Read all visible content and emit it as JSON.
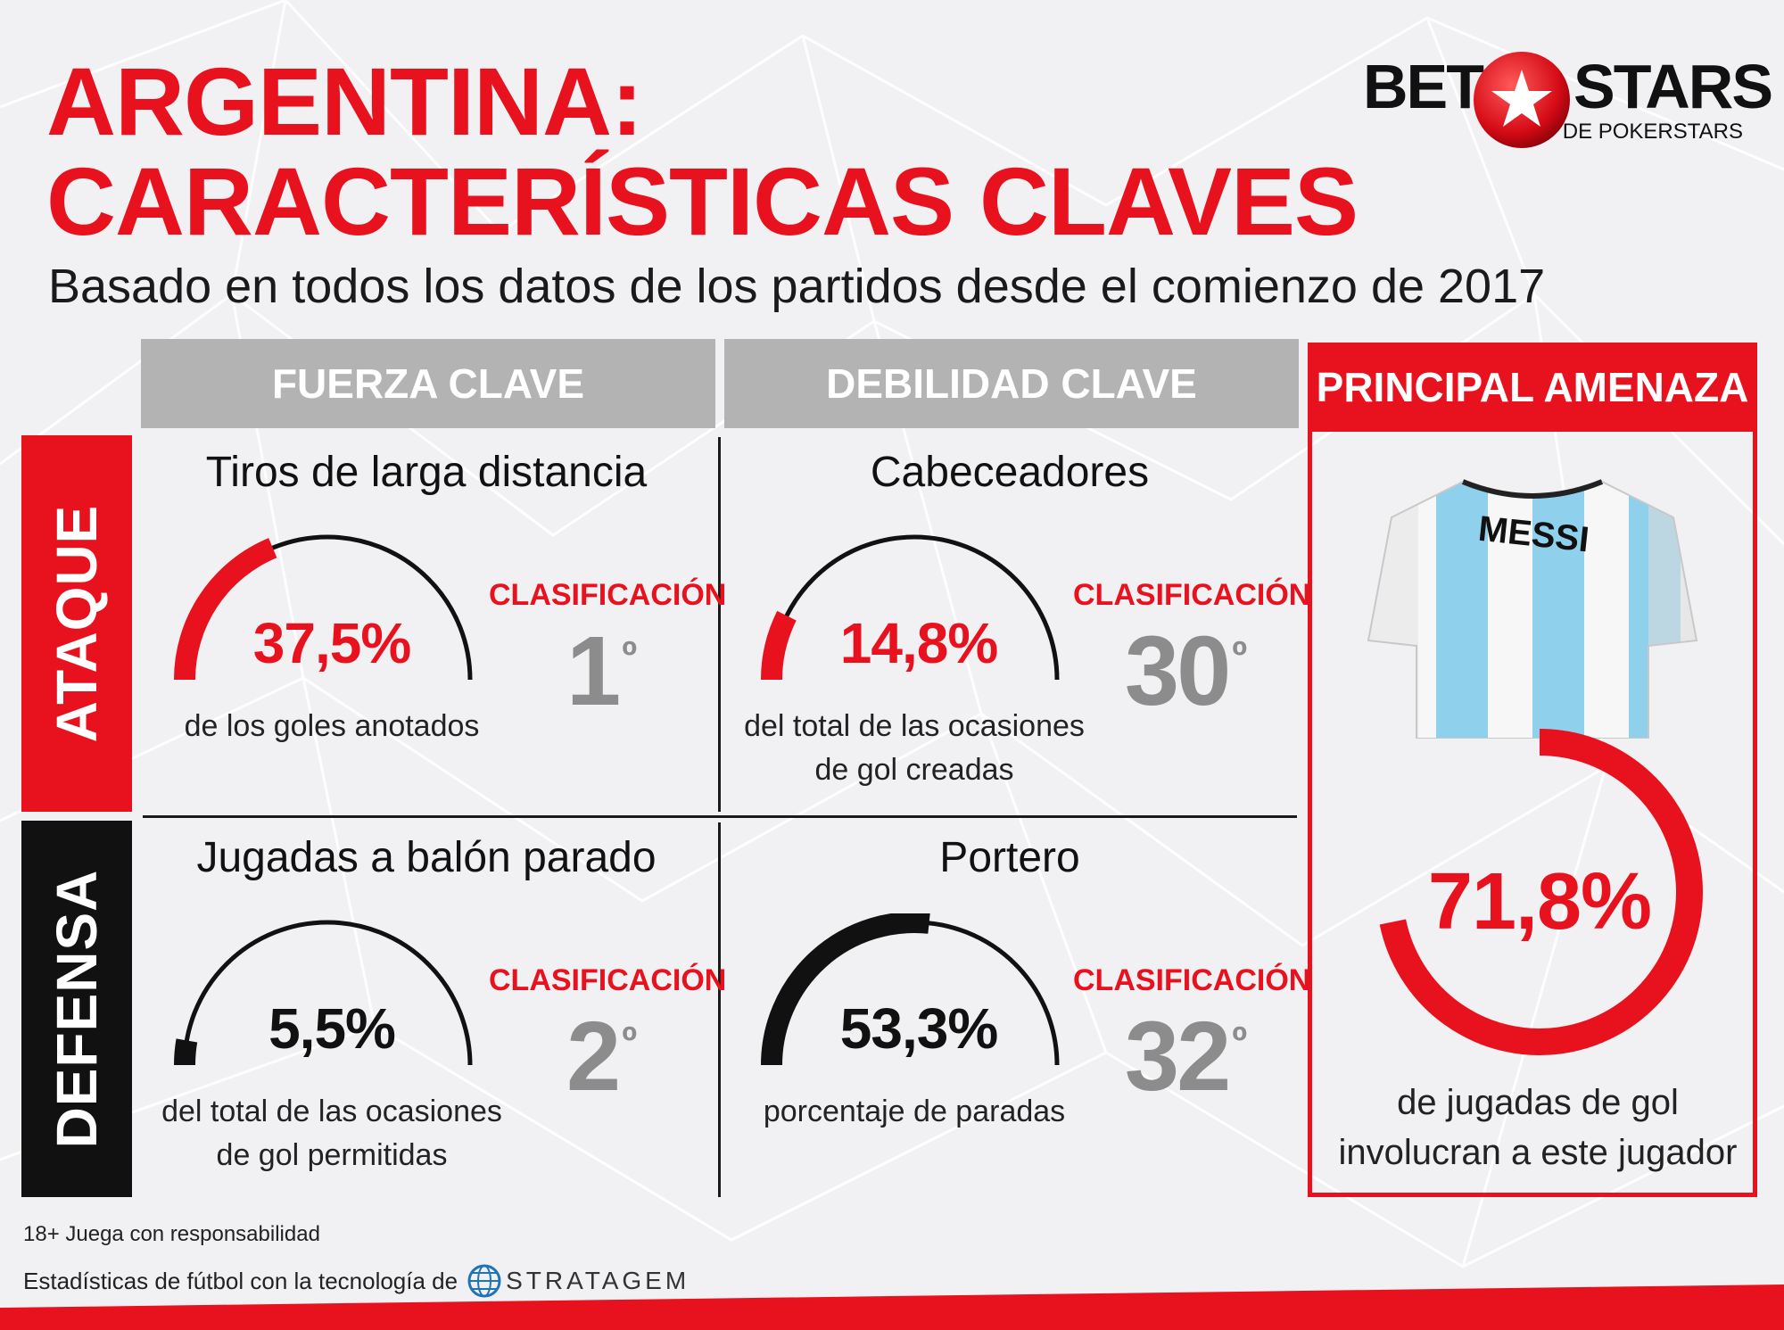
{
  "header": {
    "title_line1": "ARGENTINA:",
    "title_line2": "CARACTERÍSTICAS CLAVES",
    "subtitle": "Basado en todos los datos de los partidos desde el comienzo de 2017"
  },
  "logo": {
    "left": "BET",
    "right": "STARS",
    "sub": "DE POKERSTARS",
    "icon": "red-star-ball-icon"
  },
  "columns": {
    "strength": "FUERZA CLAVE",
    "weakness": "DEBILIDAD CLAVE",
    "threat": "PRINCIPAL AMENAZA"
  },
  "rows": {
    "attack": "ATAQUE",
    "defense": "DEFENSA"
  },
  "cells": {
    "attack_strength": {
      "title": "Tiros de larga distancia",
      "percent": "37,5%",
      "value": 37.5,
      "desc_line1": "de los goles anotados",
      "desc_line2": "",
      "rank_label": "CLASIFICACIÓN",
      "rank": "1",
      "rank_suffix": "º",
      "color": "#e8121f"
    },
    "attack_weakness": {
      "title": "Cabeceadores",
      "percent": "14,8%",
      "value": 14.8,
      "desc_line1": "del total de las ocasiones",
      "desc_line2": "de gol creadas",
      "rank_label": "CLASIFICACIÓN",
      "rank": "30",
      "rank_suffix": "º",
      "color": "#e8121f"
    },
    "defense_strength": {
      "title": "Jugadas a balón parado",
      "percent": "5,5%",
      "value": 5.5,
      "desc_line1": "del total de las ocasiones",
      "desc_line2": "de gol permitidas",
      "rank_label": "CLASIFICACIÓN",
      "rank": "2",
      "rank_suffix": "º",
      "color": "#111111"
    },
    "defense_weakness": {
      "title": "Portero",
      "percent": "53,3%",
      "value": 53.3,
      "desc_line1": "porcentaje de paradas",
      "desc_line2": "",
      "rank_label": "CLASIFICACIÓN",
      "rank": "32",
      "rank_suffix": "º",
      "color": "#111111"
    }
  },
  "threat": {
    "player_name": "MESSI",
    "percent": "71,8%",
    "value": 71.8,
    "desc_line1": "de jugadas de gol",
    "desc_line2": "involucran a este jugador",
    "icon": "argentina-jersey-icon"
  },
  "footer": {
    "responsible": "18+ Juega con responsabilidad",
    "powered": "Estadísticas de fútbol con la tecnología de",
    "brand": "STRATAGEM",
    "brand_icon": "globe-icon"
  },
  "colors": {
    "accent": "#e8121f",
    "dark": "#111111",
    "header_gray": "#b3b3b3",
    "rank_gray": "#8c8c8c"
  }
}
